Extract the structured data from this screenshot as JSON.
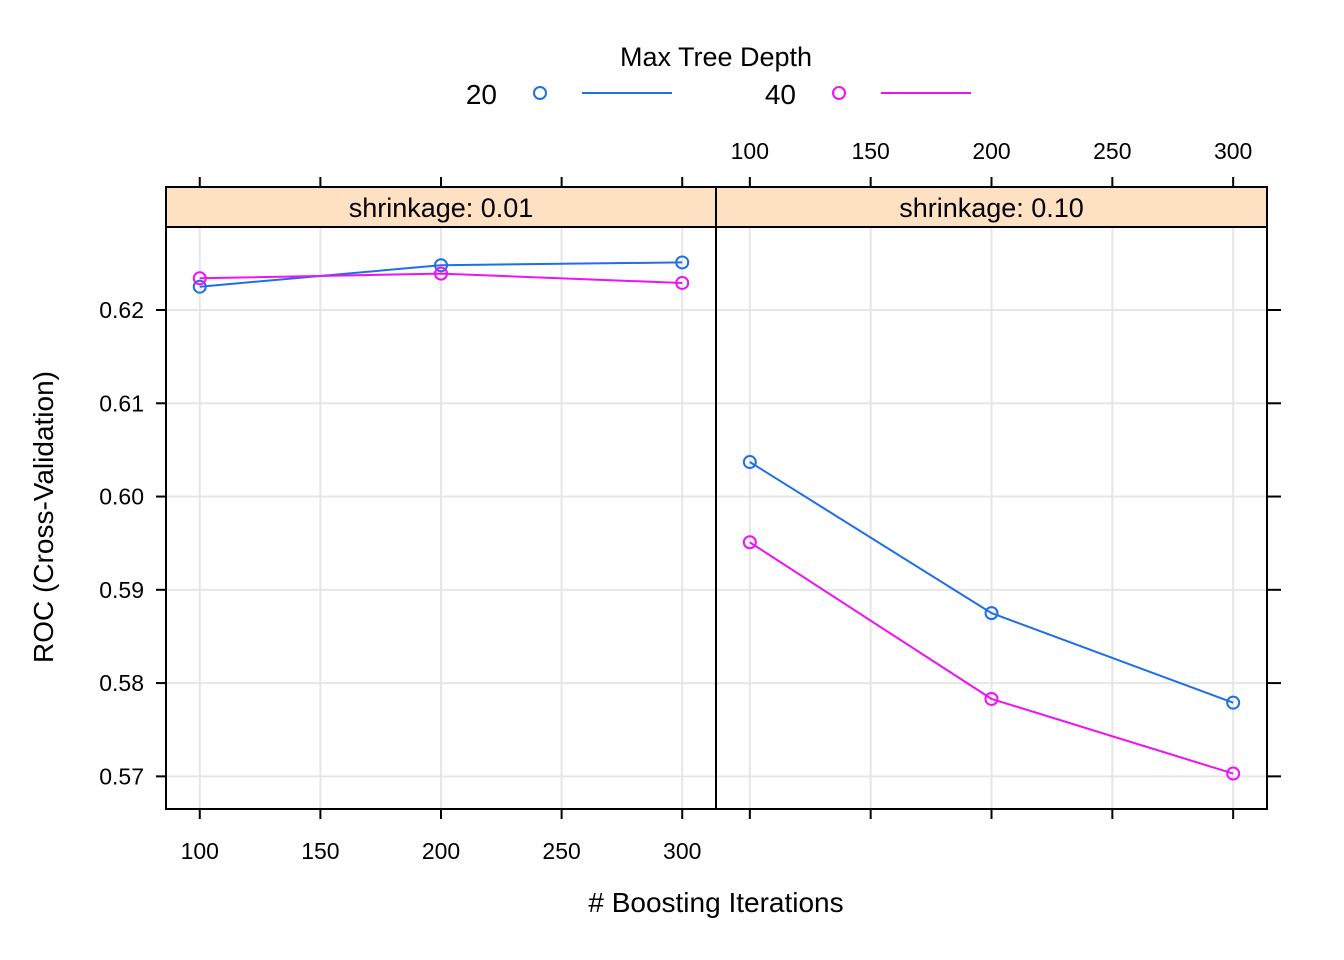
{
  "chart_data": {
    "type": "line",
    "legend": {
      "title": "Max Tree Depth",
      "placement": "top-center"
    },
    "xlabel": "# Boosting Iterations",
    "ylabel": "ROC (Cross-Validation)",
    "xlim": [
      86,
      314
    ],
    "ylim": [
      0.5665,
      0.6289
    ],
    "xticks": [
      100,
      150,
      200,
      250,
      300
    ],
    "yticks": [
      0.57,
      0.58,
      0.59,
      0.6,
      0.61,
      0.62
    ],
    "ytick_labels": [
      "0.57",
      "0.58",
      "0.59",
      "0.60",
      "0.61",
      "0.62"
    ],
    "grid": true,
    "strip_color": "#fee0c2",
    "panels": [
      {
        "strip": "shrinkage: 0.01",
        "x_axis_side": "bottom",
        "y_axis_side": "left",
        "series": [
          {
            "name": "20",
            "color": "#1f6fe8",
            "x": [
              100,
              200,
              300
            ],
            "y": [
              0.6225,
              0.6248,
              0.6251
            ]
          },
          {
            "name": "40",
            "color": "#f011f5",
            "x": [
              100,
              200,
              300
            ],
            "y": [
              0.6234,
              0.6239,
              0.6229
            ]
          }
        ]
      },
      {
        "strip": "shrinkage: 0.10",
        "x_axis_side": "top",
        "y_axis_side": "right",
        "series": [
          {
            "name": "20",
            "color": "#1f6fe8",
            "x": [
              100,
              200,
              300
            ],
            "y": [
              0.6037,
              0.5875,
              0.5779
            ]
          },
          {
            "name": "40",
            "color": "#f011f5",
            "x": [
              100,
              200,
              300
            ],
            "y": [
              0.5951,
              0.5783,
              0.5703
            ]
          }
        ]
      }
    ]
  }
}
